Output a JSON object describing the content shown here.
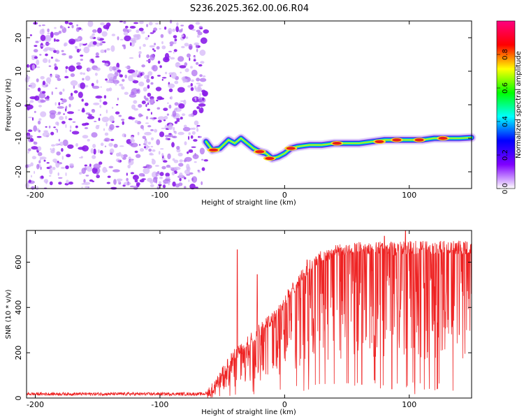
{
  "title": "S236.2025.362.00.06.R04",
  "chart_data": [
    {
      "type": "heatmap",
      "name": "spectrogram",
      "xlabel": "Height of straight line (km)",
      "ylabel": "Frequency (Hz)",
      "xlim": [
        -207,
        150
      ],
      "ylim": [
        -25,
        25
      ],
      "xticks": [
        -200,
        -100,
        0,
        100
      ],
      "yticks": [
        -20,
        -10,
        0,
        10,
        20
      ],
      "noise_region_x": [
        -207,
        -63
      ],
      "noise_amplitude_max": 0.25,
      "ridge": {
        "x": [
          -63,
          -58,
          -52,
          -45,
          -40,
          -35,
          -30,
          -25,
          -20,
          -15,
          -10,
          -5,
          0,
          5,
          10,
          20,
          30,
          40,
          50,
          60,
          70,
          80,
          90,
          100,
          110,
          120,
          130,
          140,
          150
        ],
        "frequency": [
          -11,
          -13.5,
          -13,
          -10.5,
          -11.5,
          -10,
          -11.5,
          -13,
          -14,
          -14.5,
          -16,
          -15.5,
          -14.5,
          -13,
          -12.5,
          -12,
          -12,
          -11.5,
          -11.5,
          -11.5,
          -11,
          -10.5,
          -10.5,
          -10.5,
          -10.5,
          -10,
          -10,
          -10,
          -9.8
        ]
      },
      "hotspots": [
        {
          "x": -57,
          "frequency": -13.5
        },
        {
          "x": -20,
          "frequency": -14
        },
        {
          "x": -12,
          "frequency": -16
        },
        {
          "x": 5,
          "frequency": -13
        },
        {
          "x": 42,
          "frequency": -11.5
        },
        {
          "x": 76,
          "frequency": -11
        },
        {
          "x": 90,
          "frequency": -10.5
        },
        {
          "x": 108,
          "frequency": -10.5
        },
        {
          "x": 127,
          "frequency": -10
        }
      ],
      "colorbar": {
        "label": "Normalized spectral amplitude",
        "range": [
          0,
          1
        ],
        "ticks": [
          "0.0",
          "0.2",
          "0.4",
          "0.6",
          "0.8"
        ],
        "colormap": [
          "#ffffff",
          "#8000ff",
          "#0000ff",
          "#00ffff",
          "#00ff00",
          "#ffff00",
          "#ff0000",
          "#ff0080"
        ]
      }
    },
    {
      "type": "line",
      "name": "snr",
      "xlabel": "Height of straight line (km)",
      "ylabel": "SNR (10 * v/v)",
      "xlim": [
        -207,
        150
      ],
      "ylim": [
        0,
        740
      ],
      "xticks": [
        -200,
        -100,
        0,
        100
      ],
      "yticks": [
        0,
        200,
        400,
        600
      ],
      "color": "#ee2222",
      "envelope": {
        "x": [
          -207,
          -65,
          -60,
          -55,
          -50,
          -45,
          -40,
          -35,
          -30,
          -25,
          -20,
          -15,
          -10,
          -5,
          0,
          10,
          20,
          30,
          40,
          50,
          60,
          70,
          80,
          90,
          100,
          110,
          120,
          130,
          140,
          150
        ],
        "snr": [
          18,
          18,
          25,
          60,
          110,
          160,
          190,
          215,
          240,
          275,
          300,
          325,
          355,
          390,
          430,
          510,
          580,
          625,
          645,
          655,
          660,
          665,
          660,
          660,
          665,
          665,
          665,
          665,
          665,
          660
        ]
      },
      "peaks": [
        {
          "x": -38,
          "snr": 655
        },
        {
          "x": -22,
          "snr": 545
        },
        {
          "x": 18,
          "snr": 610
        },
        {
          "x": 80,
          "snr": 715
        },
        {
          "x": 97,
          "snr": 740
        }
      ],
      "dips": [
        {
          "x": 62,
          "snr": 60
        },
        {
          "x": 72,
          "snr": 80
        },
        {
          "x": 86,
          "snr": 40
        },
        {
          "x": 140,
          "snr": 280
        }
      ]
    }
  ]
}
